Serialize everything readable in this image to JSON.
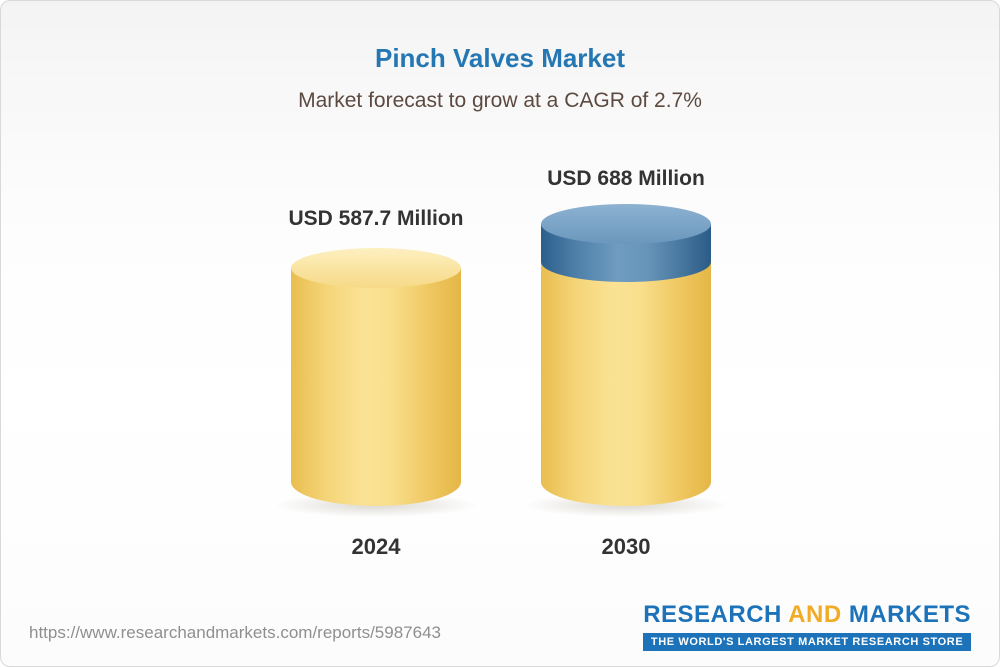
{
  "header": {
    "title": "Pinch Valves Market",
    "subtitle": "Market forecast to grow at a CAGR of 2.7%"
  },
  "chart_data": {
    "type": "bar",
    "title": "Pinch Valves Market",
    "subtitle": "Market forecast to grow at a CAGR of 2.7%",
    "unit": "USD Million",
    "cagr_percent": 2.7,
    "categories": [
      "2024",
      "2030"
    ],
    "values": [
      587.7,
      688
    ],
    "bars": [
      {
        "category": "2024",
        "value": 587.7,
        "label": "USD 587.7 Million",
        "color": "#f2cb62"
      },
      {
        "category": "2030",
        "value": 688,
        "label": "USD 688 Million",
        "base_color": "#f2cb62",
        "cap_color": "#4d7fa8"
      }
    ],
    "legend": "none",
    "grid": false,
    "colors": {
      "bar_yellow": "#f2cb62",
      "bar_yellow_light": "#fdf0c1",
      "bar_blue": "#4d7fa8",
      "bar_blue_light": "#8db2d1",
      "title_blue": "#2477b3",
      "subtitle_brown": "#5c4a40",
      "label_dark": "#333333"
    }
  },
  "footer": {
    "url": "https://www.researchandmarkets.com/reports/5987643",
    "logo": {
      "word_research": "RESEARCH",
      "word_and": "AND",
      "word_markets": "MARKETS",
      "tagline": "THE WORLD'S LARGEST MARKET RESEARCH STORE"
    }
  }
}
